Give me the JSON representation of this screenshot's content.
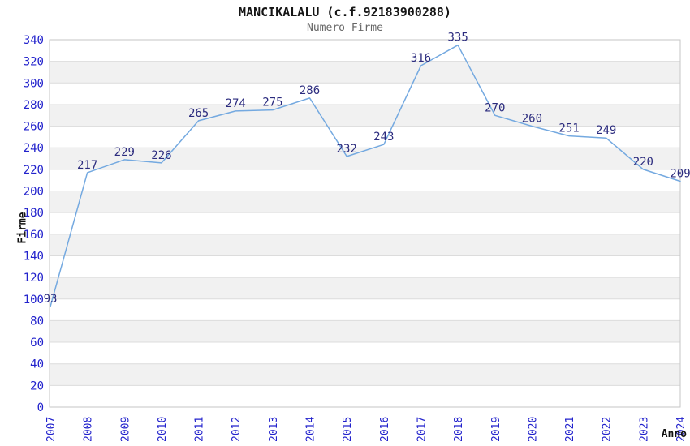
{
  "chart_data": {
    "type": "line",
    "title": "MANCIKALALU (c.f.92183900288)",
    "subtitle": "Numero Firme",
    "xlabel": "Anno",
    "ylabel": "Firme",
    "categories": [
      "2007",
      "2008",
      "2009",
      "2010",
      "2011",
      "2012",
      "2013",
      "2014",
      "2015",
      "2016",
      "2017",
      "2018",
      "2019",
      "2020",
      "2021",
      "2022",
      "2023",
      "2024"
    ],
    "values": [
      93,
      217,
      229,
      226,
      265,
      274,
      275,
      286,
      232,
      243,
      316,
      335,
      270,
      260,
      251,
      249,
      220,
      209
    ],
    "ylim": [
      0,
      340
    ],
    "ytick_step": 20,
    "grid": true,
    "legend": "none",
    "band_fill_alternating": true,
    "colors": {
      "line": "#74a9e0",
      "tick_label": "#2222cc",
      "data_label": "#2b2b7e",
      "band_gray": "#f1f1f1",
      "band_white": "#ffffff",
      "gridline": "#dcdcdc",
      "plot_border": "#c6c6c6",
      "title": "#151515",
      "subtitle": "#666666",
      "axis_title": "#111111",
      "background": "#ffffff"
    }
  }
}
